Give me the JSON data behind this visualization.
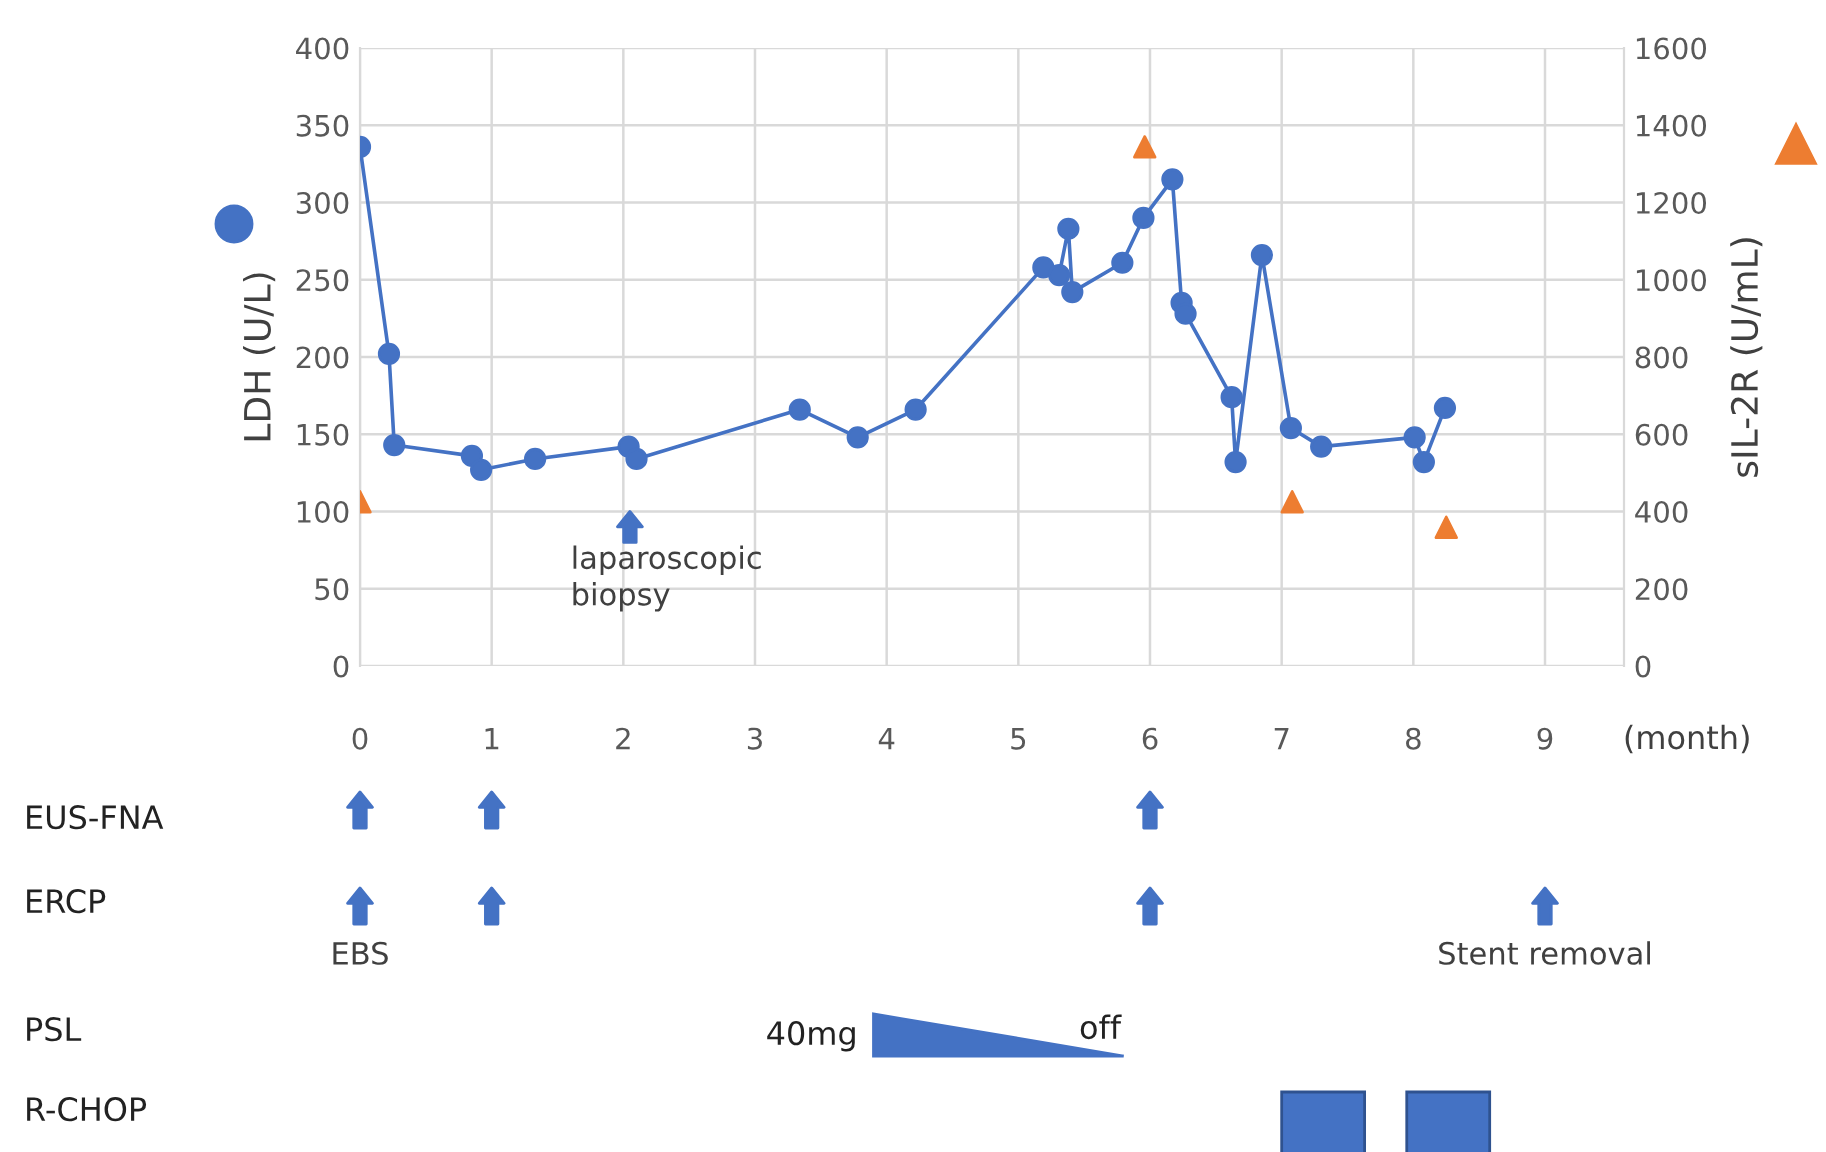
{
  "chart_data": {
    "type": "line",
    "xlabel": "(month)",
    "ylabel": "LDH (U/L)",
    "y2label": "sIL-2R (U/mL)",
    "series": [
      {
        "color": "#4472c4",
        "marker": "circle",
        "x": [
          0,
          0.22,
          0.26,
          0.85,
          0.92,
          1.33,
          2.04,
          2.1,
          3.34,
          3.78,
          4.22,
          5.19,
          5.31,
          5.38,
          5.41,
          5.79,
          5.95,
          6.17,
          6.24,
          6.27,
          6.62,
          6.65,
          6.85,
          7.07,
          7.3,
          8.01,
          8.08,
          8.24
        ],
        "values": [
          336,
          202,
          143,
          136,
          127,
          134,
          142,
          134,
          166,
          148,
          166,
          258,
          253,
          283,
          242,
          261,
          290,
          315,
          235,
          228,
          174,
          132,
          266,
          154,
          142,
          148,
          132,
          167
        ]
      },
      {
        "type": "scatter",
        "axis": "y2",
        "color": "#ed7d31",
        "marker": "triangle",
        "x": [
          0,
          5.96,
          7.08,
          8.25
        ],
        "values": [
          425,
          1344,
          425,
          359
        ]
      }
    ],
    "xlim": [
      0,
      9.6
    ],
    "xticks": [
      0,
      1,
      2,
      3,
      4,
      5,
      6,
      7,
      8,
      9
    ],
    "ylim": [
      0,
      400
    ],
    "yticks": [
      0,
      50,
      100,
      150,
      200,
      250,
      300,
      350,
      400
    ],
    "y2lim": [
      0,
      1600
    ],
    "y2ticks": [
      0,
      200,
      400,
      600,
      800,
      1000,
      1200,
      1400,
      1600
    ],
    "grid": true,
    "legend": false,
    "annotations": [
      "EUS-FNA",
      "ERCP",
      "PSL",
      "R-CHOP",
      "laparoscopic biopsy",
      "EBS",
      "Stent removal",
      "40mg",
      "off"
    ]
  }
}
